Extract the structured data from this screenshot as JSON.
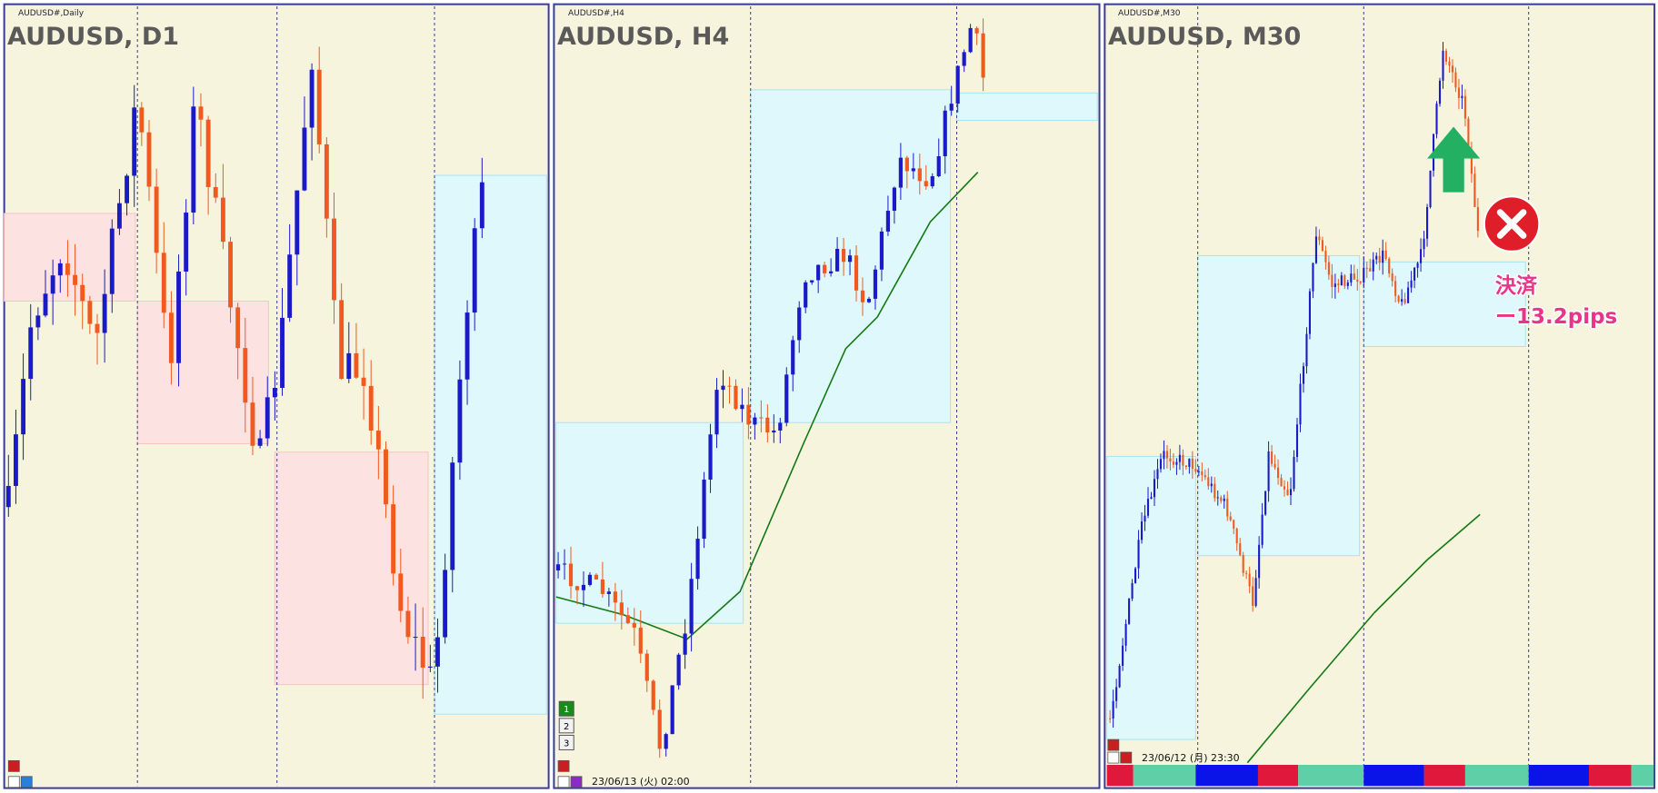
{
  "panels": [
    {
      "label": "AUDUSD#,Daily",
      "title": "AUDUSD, D1"
    },
    {
      "label": "AUDUSD#,H4",
      "title": "AUDUSD, H4",
      "timestamp": "23/06/13 (火) 02:00",
      "buttons": [
        "1",
        "2",
        "3"
      ]
    },
    {
      "label": "AUDUSD#,M30",
      "title": "AUDUSD, M30",
      "timestamp": "23/06/12 (月) 23:30",
      "annotation": [
        "決済",
        "ー13.2pips"
      ]
    }
  ]
}
